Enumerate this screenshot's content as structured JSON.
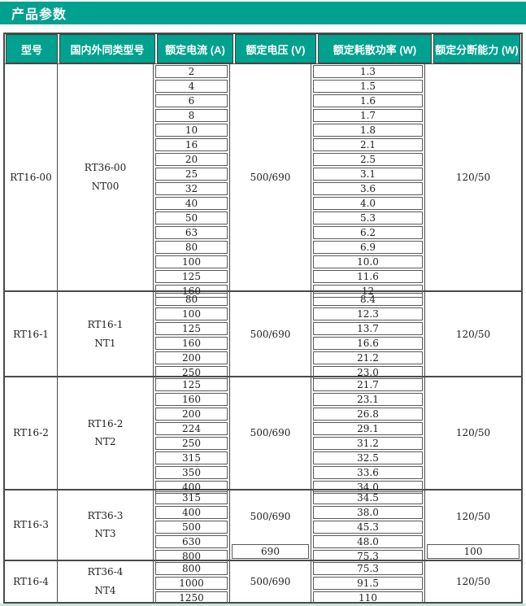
{
  "title": "产品参数",
  "accent_color": "#00a18f",
  "border_color": "#4a4a4a",
  "table": {
    "headers": [
      "型号",
      "国内外同类型号",
      "额定电流 (A)",
      "额定电压 (V)",
      "额定耗散功率 (W)",
      "额定分断能力 (W)"
    ],
    "sections": [
      {
        "model": "RT16-00",
        "equivalent": [
          "RT36-00",
          "NT00"
        ],
        "currents": [
          "2",
          "4",
          "6",
          "8",
          "10",
          "16",
          "20",
          "25",
          "32",
          "40",
          "50",
          "63",
          "80",
          "100",
          "125",
          "160"
        ],
        "powers": [
          "1.3",
          "1.5",
          "1.6",
          "1.7",
          "1.8",
          "2.1",
          "2.5",
          "3.1",
          "3.6",
          "4.0",
          "5.3",
          "6.2",
          "6.9",
          "10.0",
          "11.6",
          "12"
        ],
        "voltage": [
          {
            "value": "500/690",
            "span": 16,
            "boxed": false
          }
        ],
        "breaking": [
          {
            "value": "120/50",
            "span": 16,
            "boxed": false
          }
        ]
      },
      {
        "model": "RT16-1",
        "equivalent": [
          "RT16-1",
          "NT1"
        ],
        "currents": [
          "80",
          "100",
          "125",
          "160",
          "200",
          "250"
        ],
        "powers": [
          "8.4",
          "12.3",
          "13.7",
          "16.6",
          "21.2",
          "23.0"
        ],
        "voltage": [
          {
            "value": "500/690",
            "span": 6,
            "boxed": false
          }
        ],
        "breaking": [
          {
            "value": "120/50",
            "span": 6,
            "boxed": false
          }
        ]
      },
      {
        "model": "RT16-2",
        "equivalent": [
          "RT16-2",
          "NT2"
        ],
        "currents": [
          "125",
          "160",
          "200",
          "224",
          "250",
          "315",
          "350",
          "400"
        ],
        "powers": [
          "21.7",
          "23.1",
          "26.8",
          "29.1",
          "31.2",
          "32.5",
          "33.6",
          "34.0"
        ],
        "voltage": [
          {
            "value": "500/690",
            "span": 8,
            "boxed": false
          }
        ],
        "breaking": [
          {
            "value": "120/50",
            "span": 8,
            "boxed": false
          }
        ]
      },
      {
        "model": "RT16-3",
        "equivalent": [
          "RT36-3",
          "NT3"
        ],
        "currents": [
          "315",
          "400",
          "500",
          "630",
          "800"
        ],
        "powers": [
          "34.5",
          "38.0",
          "45.3",
          "48.0",
          "75.3"
        ],
        "voltage": [
          {
            "value": "500/690",
            "span": 4,
            "boxed": false
          },
          {
            "value": "690",
            "span": 1,
            "boxed": true
          }
        ],
        "breaking": [
          {
            "value": "120/50",
            "span": 4,
            "boxed": false
          },
          {
            "value": "100",
            "span": 1,
            "boxed": true
          }
        ]
      },
      {
        "model": "RT16-4",
        "equivalent": [
          "RT36-4",
          "NT4"
        ],
        "currents": [
          "800",
          "1000",
          "1250"
        ],
        "powers": [
          "75.3",
          "91.5",
          "110"
        ],
        "voltage": [
          {
            "value": "500/690",
            "span": 3,
            "boxed": false
          }
        ],
        "breaking": [
          {
            "value": "120/50",
            "span": 3,
            "boxed": false
          }
        ]
      }
    ]
  }
}
